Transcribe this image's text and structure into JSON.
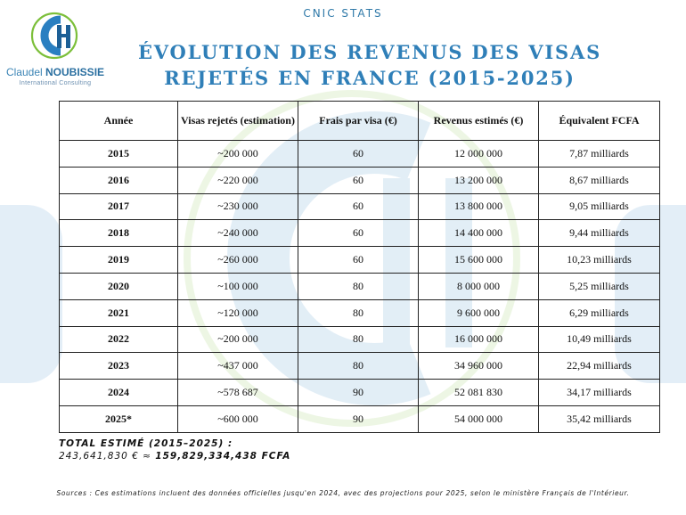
{
  "header": {
    "top_label": "CNIC STATS",
    "title_line1": "ÉVOLUTION DES REVENUS DES VISAS",
    "title_line2": "REJETÉS EN FRANCE (2015-2025)",
    "title_color": "#2f7fb8"
  },
  "logo": {
    "name_first": "Claudel",
    "name_last": "NOUBISSIE",
    "subtitle": "International Consulting",
    "colors": {
      "blue": "#2a7fc1",
      "green": "#7cbf3a"
    }
  },
  "table": {
    "headers": [
      "Année",
      "Visas rejetés (estimation)",
      "Frais par visa (€)",
      "Revenus estimés (€)",
      "Équivalent FCFA"
    ],
    "rows": [
      [
        "2015",
        "~200 000",
        "60",
        "12 000 000",
        "7,87 milliards"
      ],
      [
        "2016",
        "~220 000",
        "60",
        "13 200 000",
        "8,67 milliards"
      ],
      [
        "2017",
        "~230 000",
        "60",
        "13 800 000",
        "9,05 milliards"
      ],
      [
        "2018",
        "~240 000",
        "60",
        "14 400 000",
        "9,44 milliards"
      ],
      [
        "2019",
        "~260 000",
        "60",
        "15 600 000",
        "10,23 milliards"
      ],
      [
        "2020",
        "~100 000",
        "80",
        "8 000 000",
        "5,25 milliards"
      ],
      [
        "2021",
        "~120 000",
        "80",
        "9 600 000",
        "6,29 milliards"
      ],
      [
        "2022",
        "~200 000",
        "80",
        "16 000 000",
        "10,49 milliards"
      ],
      [
        "2023",
        "~437 000",
        "80",
        "34 960 000",
        "22,94 milliards"
      ],
      [
        "2024",
        "~578 687",
        "90",
        "52 081 830",
        "34,17 milliards"
      ],
      [
        "2025*",
        "~600 000",
        "90",
        "54 000 000",
        "35,42 milliards"
      ]
    ]
  },
  "total": {
    "heading": "TOTAL ESTIMÉ (2015–2025) :",
    "euros": "243,641,830 € ≈",
    "fcfa": "159,829,334,438 FCFA"
  },
  "sources": "Sources : Ces estimations incluent des données officielles jusqu'en 2024, avec des projections pour 2025, selon le ministère Français de l'Intérieur."
}
